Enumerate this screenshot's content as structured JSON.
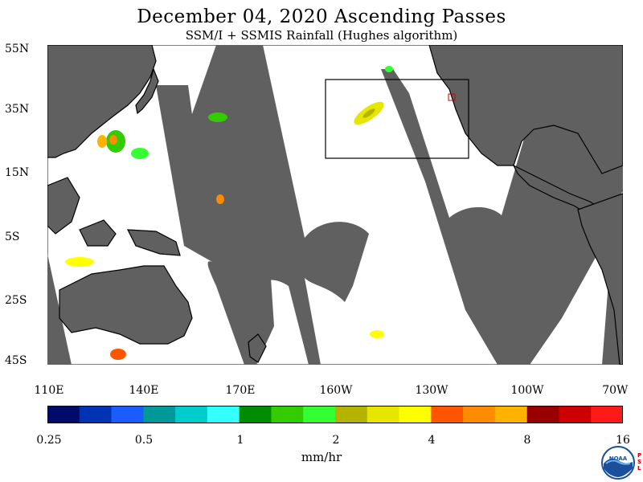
{
  "title": "December 04, 2020  Ascending Passes",
  "subtitle": "SSM/I + SSMIS Rainfall (Hughes algorithm)",
  "lat_labels": [
    "55N",
    "35N",
    "15N",
    "5S",
    "25S",
    "45S"
  ],
  "lon_labels": [
    "110E",
    "140E",
    "170E",
    "160W",
    "130W",
    "100W",
    "70W"
  ],
  "colorbar": {
    "colors": [
      "#000a6b",
      "#0033b3",
      "#1a5cff",
      "#009999",
      "#00cccc",
      "#33ffff",
      "#008c00",
      "#33cc00",
      "#33ff33",
      "#b3b300",
      "#e6e600",
      "#ffff00",
      "#ff5500",
      "#ff8c00",
      "#ffb300",
      "#990000",
      "#cc0000",
      "#ff1a1a"
    ],
    "tick_labels": [
      "0.25",
      "0.5",
      "1",
      "2",
      "4",
      "8",
      "16"
    ],
    "unit": "mm/hr"
  },
  "colors": {
    "land": "#ffffff",
    "no_data_gap": "#606060",
    "coast": "#000000",
    "box": "#000000"
  },
  "logo": {
    "name": "noaa-logo",
    "side_text": "P S L"
  }
}
